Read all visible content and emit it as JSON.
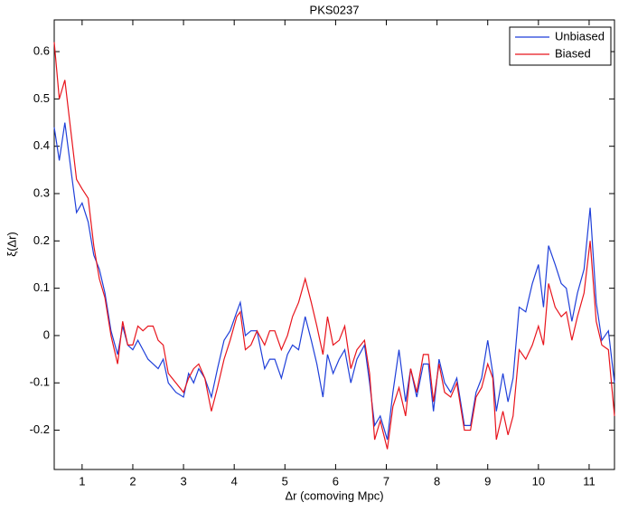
{
  "chart_data": {
    "type": "line",
    "title": "PKS0237",
    "x_label": "Δr (comoving Mpc)",
    "y_label": "ξ(Δr)",
    "x": [
      0.45,
      0.55,
      0.66,
      0.78,
      0.89,
      1.0,
      1.12,
      1.23,
      1.34,
      1.45,
      1.57,
      1.7,
      1.8,
      1.9,
      2.0,
      2.1,
      2.2,
      2.3,
      2.4,
      2.5,
      2.6,
      2.7,
      2.85,
      3.0,
      3.1,
      3.2,
      3.3,
      3.42,
      3.55,
      3.67,
      3.8,
      3.92,
      4.05,
      4.12,
      4.22,
      4.33,
      4.45,
      4.6,
      4.7,
      4.8,
      4.93,
      5.05,
      5.15,
      5.27,
      5.4,
      5.52,
      5.63,
      5.75,
      5.84,
      5.95,
      6.07,
      6.18,
      6.3,
      6.42,
      6.57,
      6.67,
      6.77,
      6.88,
      7.02,
      7.13,
      7.25,
      7.38,
      7.48,
      7.6,
      7.73,
      7.83,
      7.93,
      8.04,
      8.15,
      8.27,
      8.39,
      8.54,
      8.66,
      8.77,
      8.88,
      9.0,
      9.1,
      9.17,
      9.3,
      9.4,
      9.5,
      9.62,
      9.75,
      9.88,
      10.0,
      10.1,
      10.2,
      10.33,
      10.45,
      10.55,
      10.66,
      10.77,
      10.9,
      11.02,
      11.14,
      11.25,
      11.38,
      11.5
    ],
    "series": [
      {
        "name": "Unbiased",
        "color": "#1f3fd9",
        "values": [
          0.44,
          0.37,
          0.45,
          0.35,
          0.26,
          0.28,
          0.24,
          0.17,
          0.14,
          0.09,
          0.01,
          -0.04,
          0.02,
          -0.02,
          -0.03,
          -0.01,
          -0.03,
          -0.05,
          -0.06,
          -0.07,
          -0.05,
          -0.1,
          -0.12,
          -0.13,
          -0.08,
          -0.1,
          -0.07,
          -0.09,
          -0.13,
          -0.07,
          -0.01,
          0.01,
          0.05,
          0.07,
          0.0,
          0.01,
          0.01,
          -0.07,
          -0.05,
          -0.05,
          -0.09,
          -0.04,
          -0.02,
          -0.03,
          0.04,
          -0.01,
          -0.06,
          -0.13,
          -0.04,
          -0.08,
          -0.05,
          -0.03,
          -0.1,
          -0.05,
          -0.02,
          -0.1,
          -0.19,
          -0.17,
          -0.22,
          -0.12,
          -0.03,
          -0.14,
          -0.07,
          -0.13,
          -0.06,
          -0.06,
          -0.16,
          -0.05,
          -0.1,
          -0.12,
          -0.09,
          -0.19,
          -0.19,
          -0.12,
          -0.09,
          -0.01,
          -0.08,
          -0.16,
          -0.08,
          -0.14,
          -0.09,
          0.06,
          0.05,
          0.11,
          0.15,
          0.06,
          0.19,
          0.15,
          0.11,
          0.1,
          0.03,
          0.09,
          0.14,
          0.27,
          0.07,
          -0.01,
          0.01,
          -0.1
        ]
      },
      {
        "name": "Biased",
        "color": "#e8141c",
        "values": [
          0.62,
          0.5,
          0.54,
          0.43,
          0.33,
          0.31,
          0.29,
          0.19,
          0.12,
          0.08,
          0.0,
          -0.06,
          0.03,
          -0.02,
          -0.02,
          0.02,
          0.01,
          0.02,
          0.02,
          -0.01,
          -0.02,
          -0.08,
          -0.1,
          -0.12,
          -0.09,
          -0.07,
          -0.06,
          -0.09,
          -0.16,
          -0.11,
          -0.05,
          -0.01,
          0.04,
          0.05,
          -0.03,
          -0.02,
          0.01,
          -0.02,
          0.01,
          0.01,
          -0.03,
          0.0,
          0.04,
          0.07,
          0.12,
          0.07,
          0.02,
          -0.04,
          0.04,
          -0.02,
          -0.01,
          0.02,
          -0.07,
          -0.03,
          -0.01,
          -0.08,
          -0.22,
          -0.18,
          -0.24,
          -0.15,
          -0.11,
          -0.17,
          -0.07,
          -0.12,
          -0.04,
          -0.04,
          -0.14,
          -0.06,
          -0.12,
          -0.13,
          -0.1,
          -0.2,
          -0.2,
          -0.13,
          -0.11,
          -0.06,
          -0.09,
          -0.22,
          -0.16,
          -0.21,
          -0.17,
          -0.03,
          -0.05,
          -0.02,
          0.02,
          -0.02,
          0.11,
          0.06,
          0.04,
          0.05,
          -0.01,
          0.04,
          0.09,
          0.2,
          0.03,
          -0.02,
          -0.03,
          -0.17
        ]
      }
    ],
    "xlim": [
      0.45,
      11.5
    ],
    "ylim": [
      -0.283,
      0.667
    ],
    "xticks": [
      1,
      2,
      3,
      4,
      5,
      6,
      7,
      8,
      9,
      10,
      11
    ],
    "yticks": [
      -0.2,
      -0.1,
      0,
      0.1,
      0.2,
      0.3,
      0.4,
      0.5,
      0.6
    ],
    "legend": "upper right"
  }
}
